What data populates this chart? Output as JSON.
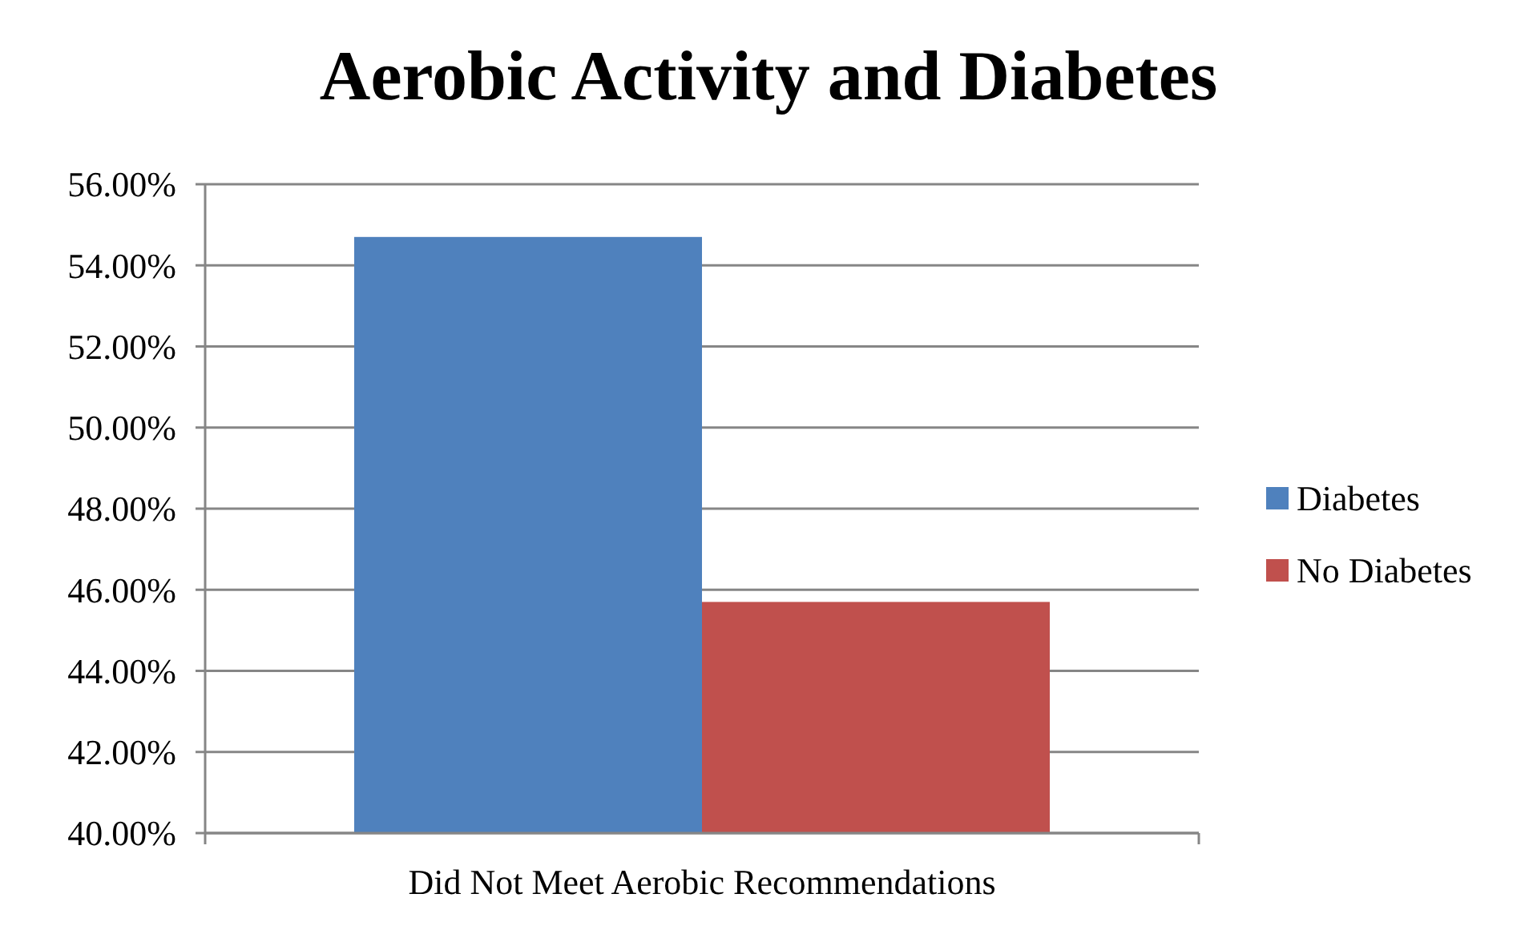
{
  "chart_data": {
    "type": "bar",
    "title": "Aerobic Activity and Diabetes",
    "categories": [
      "Did Not Meet Aerobic Recommendations"
    ],
    "series": [
      {
        "name": "Diabetes",
        "color": "#4f81bd",
        "values": [
          54.7
        ]
      },
      {
        "name": "No Diabetes",
        "color": "#c0504d",
        "values": [
          45.7
        ]
      }
    ],
    "ylim": [
      40,
      56
    ],
    "yticks": [
      {
        "value": 40,
        "label": "40.00%"
      },
      {
        "value": 42,
        "label": "42.00%"
      },
      {
        "value": 44,
        "label": "44.00%"
      },
      {
        "value": 46,
        "label": "46.00%"
      },
      {
        "value": 48,
        "label": "48.00%"
      },
      {
        "value": 50,
        "label": "50.00%"
      },
      {
        "value": 52,
        "label": "52.00%"
      },
      {
        "value": 54,
        "label": "54.00%"
      },
      {
        "value": 56,
        "label": "56.00%"
      }
    ],
    "grid": "y",
    "legend": "right"
  }
}
